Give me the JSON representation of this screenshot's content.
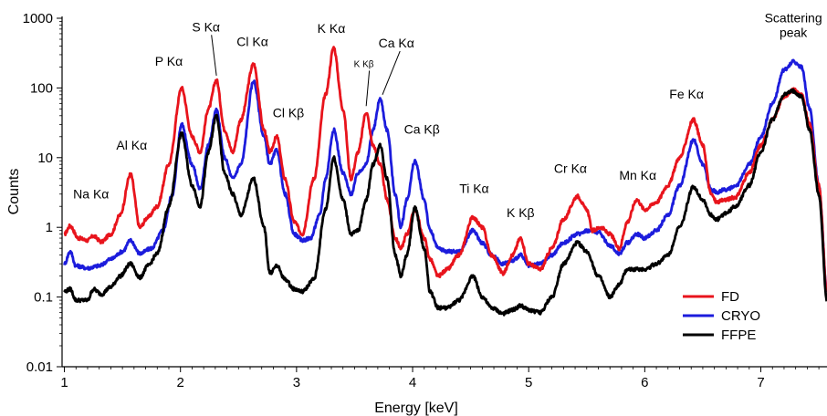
{
  "chart_data": {
    "type": "line",
    "title": "",
    "xlabel": "Energy [keV]",
    "ylabel": "Counts",
    "xlim": [
      0.98,
      7.57
    ],
    "ylim": [
      0.01,
      1000
    ],
    "yscale": "log",
    "grid": false,
    "legend_position": "lower-right",
    "x_ticks": [
      1,
      2,
      3,
      4,
      5,
      6,
      7
    ],
    "x_tick_labels": [
      "1",
      "2",
      "3",
      "4",
      "5",
      "6",
      "7"
    ],
    "y_ticks": [
      0.01,
      0.1,
      1,
      10,
      100,
      1000
    ],
    "y_tick_labels": [
      "0.01",
      "0.1",
      "1",
      "10",
      "100",
      "1000"
    ],
    "series": [
      {
        "name": "FD",
        "color": "#e8141c",
        "points": [
          [
            1.0,
            0.8
          ],
          [
            1.05,
            1.05
          ],
          [
            1.12,
            0.7
          ],
          [
            1.2,
            0.65
          ],
          [
            1.25,
            0.75
          ],
          [
            1.32,
            0.62
          ],
          [
            1.4,
            0.8
          ],
          [
            1.48,
            1.5
          ],
          [
            1.57,
            5.8
          ],
          [
            1.65,
            1.0
          ],
          [
            1.72,
            1.4
          ],
          [
            1.8,
            2.0
          ],
          [
            1.9,
            8.0
          ],
          [
            2.01,
            100
          ],
          [
            2.1,
            20
          ],
          [
            2.17,
            12
          ],
          [
            2.24,
            50
          ],
          [
            2.31,
            130
          ],
          [
            2.38,
            25
          ],
          [
            2.45,
            12
          ],
          [
            2.52,
            35
          ],
          [
            2.63,
            220
          ],
          [
            2.72,
            25
          ],
          [
            2.77,
            12
          ],
          [
            2.83,
            20
          ],
          [
            2.9,
            5
          ],
          [
            2.98,
            1.2
          ],
          [
            3.05,
            0.8
          ],
          [
            3.15,
            5
          ],
          [
            3.25,
            80
          ],
          [
            3.32,
            380
          ],
          [
            3.4,
            50
          ],
          [
            3.47,
            5
          ],
          [
            3.53,
            12
          ],
          [
            3.6,
            45
          ],
          [
            3.66,
            15
          ],
          [
            3.72,
            8
          ],
          [
            3.78,
            2.5
          ],
          [
            3.85,
            0.7
          ],
          [
            3.9,
            0.5
          ],
          [
            3.95,
            0.8
          ],
          [
            4.02,
            1.8
          ],
          [
            4.1,
            0.7
          ],
          [
            4.15,
            0.35
          ],
          [
            4.22,
            0.2
          ],
          [
            4.3,
            0.25
          ],
          [
            4.4,
            0.4
          ],
          [
            4.52,
            1.4
          ],
          [
            4.6,
            1.0
          ],
          [
            4.68,
            0.4
          ],
          [
            4.78,
            0.22
          ],
          [
            4.86,
            0.4
          ],
          [
            4.93,
            0.7
          ],
          [
            5.0,
            0.3
          ],
          [
            5.1,
            0.25
          ],
          [
            5.2,
            0.5
          ],
          [
            5.3,
            1.3
          ],
          [
            5.42,
            2.8
          ],
          [
            5.5,
            1.8
          ],
          [
            5.55,
            0.9
          ],
          [
            5.62,
            1.0
          ],
          [
            5.7,
            0.8
          ],
          [
            5.78,
            0.5
          ],
          [
            5.85,
            1.2
          ],
          [
            5.93,
            2.5
          ],
          [
            6.0,
            1.8
          ],
          [
            6.1,
            2.3
          ],
          [
            6.2,
            4
          ],
          [
            6.3,
            10
          ],
          [
            6.42,
            35
          ],
          [
            6.5,
            15
          ],
          [
            6.57,
            3
          ],
          [
            6.62,
            2.3
          ],
          [
            6.7,
            2.5
          ],
          [
            6.78,
            2.7
          ],
          [
            6.9,
            6
          ],
          [
            7.0,
            15
          ],
          [
            7.1,
            35
          ],
          [
            7.2,
            75
          ],
          [
            7.28,
            95
          ],
          [
            7.35,
            80
          ],
          [
            7.42,
            30
          ],
          [
            7.5,
            4
          ],
          [
            7.57,
            0.12
          ]
        ]
      },
      {
        "name": "CRYO",
        "color": "#1c1cdc",
        "points": [
          [
            1.0,
            0.3
          ],
          [
            1.05,
            0.45
          ],
          [
            1.1,
            0.28
          ],
          [
            1.2,
            0.26
          ],
          [
            1.3,
            0.28
          ],
          [
            1.4,
            0.35
          ],
          [
            1.5,
            0.45
          ],
          [
            1.57,
            0.65
          ],
          [
            1.65,
            0.42
          ],
          [
            1.75,
            0.5
          ],
          [
            1.85,
            0.9
          ],
          [
            1.93,
            3
          ],
          [
            2.01,
            30
          ],
          [
            2.1,
            8
          ],
          [
            2.17,
            3.5
          ],
          [
            2.24,
            15
          ],
          [
            2.31,
            48
          ],
          [
            2.38,
            10
          ],
          [
            2.45,
            5
          ],
          [
            2.52,
            8
          ],
          [
            2.63,
            125
          ],
          [
            2.72,
            20
          ],
          [
            2.77,
            8
          ],
          [
            2.83,
            13
          ],
          [
            2.9,
            3
          ],
          [
            2.98,
            0.8
          ],
          [
            3.05,
            0.65
          ],
          [
            3.12,
            0.7
          ],
          [
            3.2,
            1.5
          ],
          [
            3.25,
            5
          ],
          [
            3.32,
            25
          ],
          [
            3.4,
            6
          ],
          [
            3.47,
            3
          ],
          [
            3.53,
            6
          ],
          [
            3.6,
            8
          ],
          [
            3.66,
            25
          ],
          [
            3.72,
            70
          ],
          [
            3.78,
            25
          ],
          [
            3.85,
            3
          ],
          [
            3.9,
            1.0
          ],
          [
            3.95,
            2.5
          ],
          [
            4.02,
            9
          ],
          [
            4.1,
            2.5
          ],
          [
            4.15,
            0.9
          ],
          [
            4.22,
            0.5
          ],
          [
            4.3,
            0.45
          ],
          [
            4.4,
            0.45
          ],
          [
            4.52,
            0.9
          ],
          [
            4.6,
            0.6
          ],
          [
            4.68,
            0.4
          ],
          [
            4.78,
            0.3
          ],
          [
            4.86,
            0.33
          ],
          [
            4.93,
            0.4
          ],
          [
            5.0,
            0.28
          ],
          [
            5.1,
            0.3
          ],
          [
            5.2,
            0.4
          ],
          [
            5.3,
            0.6
          ],
          [
            5.42,
            0.8
          ],
          [
            5.5,
            0.9
          ],
          [
            5.6,
            0.85
          ],
          [
            5.7,
            0.55
          ],
          [
            5.78,
            0.42
          ],
          [
            5.85,
            0.6
          ],
          [
            5.93,
            0.8
          ],
          [
            6.0,
            0.7
          ],
          [
            6.1,
            0.9
          ],
          [
            6.2,
            1.5
          ],
          [
            6.3,
            4
          ],
          [
            6.42,
            18
          ],
          [
            6.5,
            8
          ],
          [
            6.57,
            3.5
          ],
          [
            6.62,
            3.2
          ],
          [
            6.7,
            3.5
          ],
          [
            6.78,
            3.8
          ],
          [
            6.9,
            8
          ],
          [
            7.0,
            20
          ],
          [
            7.1,
            60
          ],
          [
            7.2,
            180
          ],
          [
            7.28,
            240
          ],
          [
            7.35,
            200
          ],
          [
            7.42,
            50
          ],
          [
            7.5,
            4
          ],
          [
            7.57,
            0.12
          ]
        ]
      },
      {
        "name": "FFPE",
        "color": "#000000",
        "points": [
          [
            1.0,
            0.12
          ],
          [
            1.05,
            0.13
          ],
          [
            1.1,
            0.09
          ],
          [
            1.2,
            0.09
          ],
          [
            1.25,
            0.13
          ],
          [
            1.32,
            0.11
          ],
          [
            1.4,
            0.14
          ],
          [
            1.48,
            0.2
          ],
          [
            1.57,
            0.3
          ],
          [
            1.65,
            0.19
          ],
          [
            1.72,
            0.28
          ],
          [
            1.8,
            0.42
          ],
          [
            1.9,
            2
          ],
          [
            2.01,
            22
          ],
          [
            2.1,
            4
          ],
          [
            2.17,
            2
          ],
          [
            2.24,
            12
          ],
          [
            2.31,
            40
          ],
          [
            2.38,
            6
          ],
          [
            2.45,
            3
          ],
          [
            2.52,
            1.5
          ],
          [
            2.63,
            5
          ],
          [
            2.72,
            1.0
          ],
          [
            2.77,
            0.22
          ],
          [
            2.83,
            0.28
          ],
          [
            2.9,
            0.18
          ],
          [
            2.98,
            0.13
          ],
          [
            3.05,
            0.12
          ],
          [
            3.15,
            0.18
          ],
          [
            3.25,
            1.8
          ],
          [
            3.32,
            10
          ],
          [
            3.4,
            2.5
          ],
          [
            3.47,
            0.8
          ],
          [
            3.53,
            0.9
          ],
          [
            3.6,
            2.5
          ],
          [
            3.66,
            8
          ],
          [
            3.72,
            15
          ],
          [
            3.78,
            5
          ],
          [
            3.85,
            0.4
          ],
          [
            3.9,
            0.2
          ],
          [
            3.95,
            0.4
          ],
          [
            4.02,
            1.9
          ],
          [
            4.1,
            0.5
          ],
          [
            4.15,
            0.12
          ],
          [
            4.22,
            0.07
          ],
          [
            4.3,
            0.07
          ],
          [
            4.4,
            0.09
          ],
          [
            4.52,
            0.2
          ],
          [
            4.6,
            0.1
          ],
          [
            4.68,
            0.07
          ],
          [
            4.78,
            0.058
          ],
          [
            4.86,
            0.065
          ],
          [
            4.93,
            0.075
          ],
          [
            5.0,
            0.065
          ],
          [
            5.1,
            0.06
          ],
          [
            5.2,
            0.1
          ],
          [
            5.3,
            0.3
          ],
          [
            5.42,
            0.6
          ],
          [
            5.5,
            0.45
          ],
          [
            5.6,
            0.2
          ],
          [
            5.7,
            0.1
          ],
          [
            5.78,
            0.15
          ],
          [
            5.85,
            0.25
          ],
          [
            5.93,
            0.25
          ],
          [
            6.0,
            0.25
          ],
          [
            6.1,
            0.3
          ],
          [
            6.2,
            0.4
          ],
          [
            6.3,
            1.0
          ],
          [
            6.42,
            3.8
          ],
          [
            6.5,
            2.5
          ],
          [
            6.57,
            1.5
          ],
          [
            6.62,
            1.3
          ],
          [
            6.7,
            1.6
          ],
          [
            6.78,
            2.0
          ],
          [
            6.9,
            4
          ],
          [
            7.0,
            12
          ],
          [
            7.1,
            35
          ],
          [
            7.2,
            80
          ],
          [
            7.28,
            90
          ],
          [
            7.35,
            75
          ],
          [
            7.42,
            25
          ],
          [
            7.5,
            3
          ],
          [
            7.57,
            0.09
          ]
        ]
      }
    ],
    "annotations": [
      {
        "text": "Na Kα",
        "x": 1.23,
        "y": 2.6
      },
      {
        "text": "Al Kα",
        "x": 1.58,
        "y": 13
      },
      {
        "text": "P Kα",
        "x": 1.9,
        "y": 210
      },
      {
        "text": "S Kα",
        "x": 2.22,
        "y": 650,
        "pointer": [
          2.31,
          150
        ]
      },
      {
        "text": "Cl Kα",
        "x": 2.62,
        "y": 400
      },
      {
        "text": "Cl Kβ",
        "x": 2.93,
        "y": 38
      },
      {
        "text": "K Kα",
        "x": 3.3,
        "y": 620
      },
      {
        "text": "K Kβ",
        "x": 3.58,
        "y": 200,
        "small": true,
        "pointer": [
          3.6,
          55
        ]
      },
      {
        "text": "Ca Kα",
        "x": 3.86,
        "y": 380,
        "pointer": [
          3.74,
          80
        ]
      },
      {
        "text": "Ca Kβ",
        "x": 4.08,
        "y": 22
      },
      {
        "text": "Ti Kα",
        "x": 4.53,
        "y": 3.1
      },
      {
        "text": "K Kβ",
        "x": 4.93,
        "y": 1.4
      },
      {
        "text": "Cr Kα",
        "x": 5.36,
        "y": 6
      },
      {
        "text": "Mn Kα",
        "x": 5.94,
        "y": 4.8
      },
      {
        "text": "Fe Kα",
        "x": 6.36,
        "y": 70
      },
      {
        "text": "Scattering",
        "x": 7.28,
        "y": 870
      },
      {
        "text": "peak",
        "x": 7.28,
        "y": 540
      }
    ]
  }
}
